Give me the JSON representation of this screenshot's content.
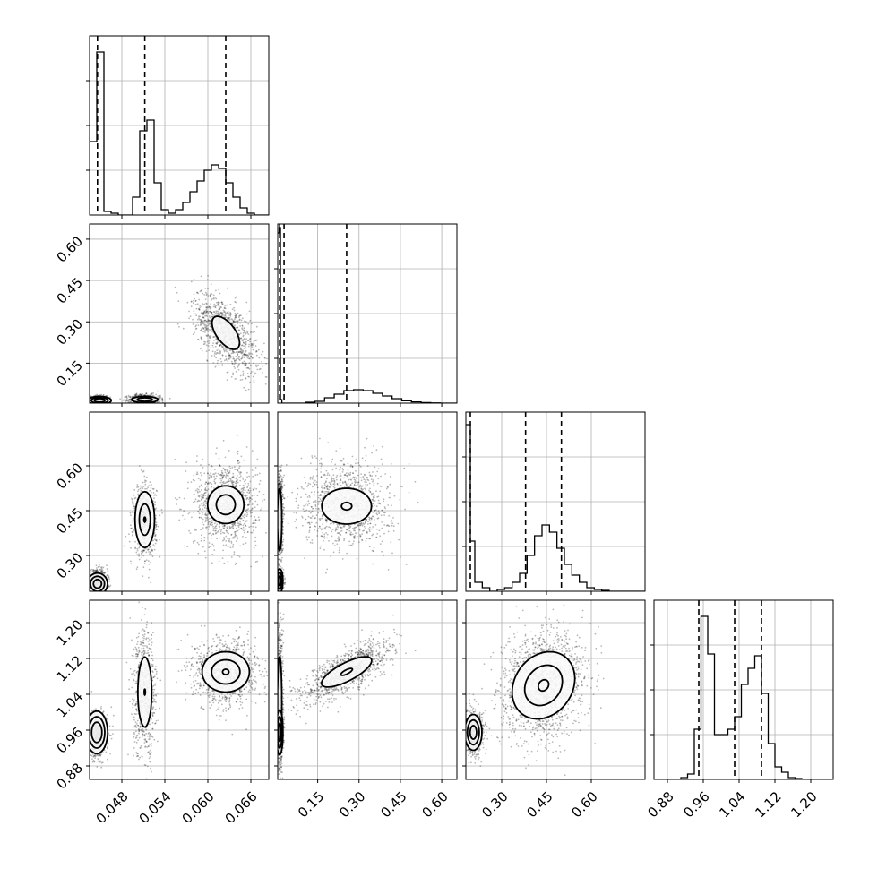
{
  "chart_data": {
    "type": "corner",
    "grid": true,
    "colors": {
      "frame": "#000000",
      "grid": "#b0b0b0",
      "points": "#000000",
      "background": "#ffffff"
    },
    "params": [
      {
        "range": [
          0.0435,
          0.0685
        ],
        "ticks": [
          0.048,
          0.054,
          0.06,
          0.066
        ],
        "tick_labels": [
          "0.048",
          "0.054",
          "0.060",
          "0.066"
        ]
      },
      {
        "range": [
          0.005,
          0.655
        ],
        "ticks": [
          0.15,
          0.3,
          0.45,
          0.6
        ],
        "tick_labels": [
          "0.15",
          "0.30",
          "0.45",
          "0.60"
        ]
      },
      {
        "range": [
          0.18,
          0.78
        ],
        "ticks": [
          0.3,
          0.45,
          0.6
        ],
        "tick_labels": [
          "0.30",
          "0.45",
          "0.60"
        ]
      },
      {
        "range": [
          0.85,
          1.25
        ],
        "ticks": [
          0.88,
          0.96,
          1.04,
          1.12,
          1.2
        ],
        "tick_labels": [
          "0.88",
          "0.96",
          "1.04",
          "1.12",
          "1.20"
        ]
      }
    ],
    "histograms": [
      {
        "param": 0,
        "edges": [
          0.0435,
          0.0445,
          0.0455,
          0.0465,
          0.0475,
          0.0485,
          0.0495,
          0.0505,
          0.0515,
          0.0525,
          0.0535,
          0.0545,
          0.0555,
          0.0565,
          0.0575,
          0.0585,
          0.0595,
          0.0605,
          0.0615,
          0.0625,
          0.0635,
          0.0645,
          0.0655,
          0.0665,
          0.0675,
          0.0685
        ],
        "counts": [
          0.41,
          0.91,
          0.02,
          0.01,
          0.0,
          0.0,
          0.1,
          0.47,
          0.53,
          0.18,
          0.03,
          0.01,
          0.03,
          0.07,
          0.13,
          0.19,
          0.25,
          0.28,
          0.26,
          0.18,
          0.1,
          0.04,
          0.01,
          0.0,
          0.0
        ],
        "quantiles": [
          0.0446,
          0.0512,
          0.0625
        ]
      },
      {
        "param": 1,
        "edges": [
          0.005,
          0.01,
          0.015,
          0.02,
          0.035,
          0.07,
          0.105,
          0.14,
          0.175,
          0.21,
          0.245,
          0.28,
          0.315,
          0.35,
          0.385,
          0.42,
          0.455,
          0.49,
          0.525,
          0.56,
          0.595,
          0.63,
          0.655
        ],
        "counts": [
          0.95,
          0.98,
          0.02,
          0.0,
          0.0,
          0.0,
          0.005,
          0.01,
          0.03,
          0.05,
          0.07,
          0.075,
          0.07,
          0.055,
          0.04,
          0.025,
          0.013,
          0.007,
          0.003,
          0.001,
          0.0,
          0.0
        ],
        "quantiles": [
          0.012,
          0.028,
          0.255
        ]
      },
      {
        "param": 2,
        "edges": [
          0.18,
          0.195,
          0.21,
          0.235,
          0.26,
          0.285,
          0.31,
          0.335,
          0.36,
          0.385,
          0.41,
          0.435,
          0.46,
          0.485,
          0.51,
          0.535,
          0.56,
          0.585,
          0.61,
          0.635,
          0.66,
          0.685,
          0.71,
          0.735,
          0.76,
          0.78
        ],
        "counts": [
          0.93,
          0.28,
          0.05,
          0.02,
          0.0,
          0.01,
          0.02,
          0.05,
          0.1,
          0.2,
          0.31,
          0.37,
          0.33,
          0.24,
          0.15,
          0.09,
          0.05,
          0.02,
          0.01,
          0.005,
          0.0,
          0.0,
          0.0,
          0.0,
          0.0
        ],
        "quantiles": [
          0.195,
          0.38,
          0.5
        ]
      },
      {
        "param": 3,
        "edges": [
          0.85,
          0.865,
          0.88,
          0.895,
          0.91,
          0.925,
          0.94,
          0.955,
          0.97,
          0.985,
          1.0,
          1.015,
          1.03,
          1.045,
          1.06,
          1.075,
          1.09,
          1.105,
          1.12,
          1.135,
          1.15,
          1.165,
          1.18,
          1.195,
          1.21,
          1.25
        ],
        "counts": [
          0.0,
          0.0,
          0.0,
          0.0,
          0.01,
          0.03,
          0.28,
          0.91,
          0.7,
          0.25,
          0.25,
          0.28,
          0.35,
          0.53,
          0.62,
          0.69,
          0.48,
          0.2,
          0.07,
          0.04,
          0.01,
          0.005,
          0.0,
          0.0,
          0.0
        ],
        "quantiles": [
          0.95,
          1.03,
          1.09
        ]
      }
    ],
    "scatter_2d": [
      {
        "x_param": 0,
        "y_param": 1,
        "clusters": [
          {
            "weight": 1.0,
            "mean": [
              0.0446,
              0.016
            ],
            "sd": [
              0.0006,
              0.008
            ],
            "corr": 0.0
          },
          {
            "weight": 1.0,
            "mean": [
              0.0512,
              0.018
            ],
            "sd": [
              0.0011,
              0.009
            ],
            "corr": 0.0
          },
          {
            "weight": 1.6,
            "mean": [
              0.0625,
              0.26
            ],
            "sd": [
              0.0022,
              0.072
            ],
            "corr": -0.6
          }
        ],
        "contours": [
          {
            "center": [
              0.0625,
              0.26
            ],
            "sd": [
              0.0016,
              0.05
            ],
            "corr": -0.6,
            "levels": [
              1.2
            ]
          },
          {
            "center": [
              0.0449,
              0.015
            ],
            "sd": [
              0.0009,
              0.008
            ],
            "corr": 0.0,
            "levels": [
              0.8,
              1.3,
              1.8
            ]
          },
          {
            "center": [
              0.0512,
              0.018
            ],
            "sd": [
              0.0013,
              0.008
            ],
            "corr": 0.0,
            "levels": [
              0.8,
              1.4
            ]
          }
        ]
      },
      {
        "x_param": 0,
        "y_param": 2,
        "clusters": [
          {
            "weight": 1.0,
            "mean": [
              0.0446,
              0.21
            ],
            "sd": [
              0.0007,
              0.02
            ],
            "corr": 0.0
          },
          {
            "weight": 1.0,
            "mean": [
              0.0512,
              0.42
            ],
            "sd": [
              0.0008,
              0.06
            ],
            "corr": 0.0
          },
          {
            "weight": 1.6,
            "mean": [
              0.0625,
              0.47
            ],
            "sd": [
              0.0022,
              0.07
            ],
            "corr": 0.0
          }
        ],
        "contours": [
          {
            "center": [
              0.0512,
              0.42
            ],
            "sd": [
              0.0008,
              0.055
            ],
            "corr": 0.0,
            "levels": [
              0.15,
              0.95,
              1.7
            ]
          },
          {
            "center": [
              0.0625,
              0.47
            ],
            "sd": [
              0.0022,
              0.055
            ],
            "corr": 0.0,
            "levels": [
              0.6,
              1.15
            ]
          },
          {
            "center": [
              0.0446,
              0.205
            ],
            "sd": [
              0.0007,
              0.018
            ],
            "corr": 0.0,
            "levels": [
              0.8,
              1.4,
              2.0
            ]
          }
        ]
      },
      {
        "x_param": 1,
        "y_param": 2,
        "clusters": [
          {
            "weight": 1.0,
            "mean": [
              0.012,
              0.44
            ],
            "sd": [
              0.006,
              0.07
            ],
            "corr": 0.0
          },
          {
            "weight": 1.0,
            "mean": [
              0.012,
              0.21
            ],
            "sd": [
              0.006,
              0.02
            ],
            "corr": 0.0
          },
          {
            "weight": 1.6,
            "mean": [
              0.255,
              0.47
            ],
            "sd": [
              0.08,
              0.07
            ],
            "corr": 0.0
          }
        ],
        "contours": [
          {
            "center": [
              0.255,
              0.465
            ],
            "sd": [
              0.075,
              0.05
            ],
            "corr": 0.0,
            "levels": [
              0.25,
              1.2
            ]
          },
          {
            "center": [
              0.012,
              0.42
            ],
            "sd": [
              0.006,
              0.08
            ],
            "corr": 0.0,
            "levels": [
              1.3
            ]
          },
          {
            "center": [
              0.012,
              0.215
            ],
            "sd": [
              0.006,
              0.02
            ],
            "corr": 0.0,
            "levels": [
              0.8,
              1.4,
              2.0
            ]
          }
        ]
      },
      {
        "x_param": 0,
        "y_param": 3,
        "clusters": [
          {
            "weight": 1.0,
            "mean": [
              0.0446,
              0.95
            ],
            "sd": [
              0.0007,
              0.025
            ],
            "corr": 0.0
          },
          {
            "weight": 1.0,
            "mean": [
              0.0512,
              1.04
            ],
            "sd": [
              0.0008,
              0.07
            ],
            "corr": 0.0
          },
          {
            "weight": 1.6,
            "mean": [
              0.0625,
              1.09
            ],
            "sd": [
              0.0022,
              0.035
            ],
            "corr": 0.0
          }
        ],
        "contours": [
          {
            "center": [
              0.0512,
              1.045
            ],
            "sd": [
              0.0008,
              0.065
            ],
            "corr": 0.0,
            "levels": [
              0.1,
              1.2
            ]
          },
          {
            "center": [
              0.0625,
              1.09
            ],
            "sd": [
              0.0022,
              0.03
            ],
            "corr": 0.0,
            "levels": [
              0.2,
              0.9,
              1.5
            ]
          },
          {
            "center": [
              0.0445,
              0.955
            ],
            "sd": [
              0.0008,
              0.025
            ],
            "corr": 0.0,
            "levels": [
              0.9,
              1.4,
              1.9
            ]
          }
        ]
      },
      {
        "x_param": 1,
        "y_param": 3,
        "clusters": [
          {
            "weight": 1.0,
            "mean": [
              0.012,
              1.03
            ],
            "sd": [
              0.006,
              0.08
            ],
            "corr": 0.0
          },
          {
            "weight": 1.0,
            "mean": [
              0.012,
              0.955
            ],
            "sd": [
              0.006,
              0.025
            ],
            "corr": 0.0
          },
          {
            "weight": 1.6,
            "mean": [
              0.255,
              1.09
            ],
            "sd": [
              0.08,
              0.035
            ],
            "corr": 0.75
          }
        ],
        "contours": [
          {
            "center": [
              0.255,
              1.09
            ],
            "sd": [
              0.07,
              0.026
            ],
            "corr": 0.75,
            "levels": [
              0.3,
              1.3
            ]
          },
          {
            "center": [
              0.012,
              1.02
            ],
            "sd": [
              0.006,
              0.08
            ],
            "corr": 0.0,
            "levels": [
              1.3
            ]
          },
          {
            "center": [
              0.012,
              0.955
            ],
            "sd": [
              0.006,
              0.025
            ],
            "corr": 0.0,
            "levels": [
              0.8,
              1.4,
              2.0
            ]
          }
        ]
      },
      {
        "x_param": 2,
        "y_param": 3,
        "clusters": [
          {
            "weight": 1.0,
            "mean": [
              0.205,
              0.955
            ],
            "sd": [
              0.018,
              0.025
            ],
            "corr": 0.0
          },
          {
            "weight": 2.2,
            "mean": [
              0.44,
              1.06
            ],
            "sd": [
              0.07,
              0.06
            ],
            "corr": 0.2
          }
        ],
        "contours": [
          {
            "center": [
              0.44,
              1.06
            ],
            "sd": [
              0.07,
              0.05
            ],
            "corr": 0.2,
            "levels": [
              0.25,
              0.9,
              1.5
            ]
          },
          {
            "center": [
              0.205,
              0.955
            ],
            "sd": [
              0.018,
              0.025
            ],
            "corr": 0.0,
            "levels": [
              0.6,
              1.1,
              1.6
            ]
          }
        ]
      }
    ]
  }
}
